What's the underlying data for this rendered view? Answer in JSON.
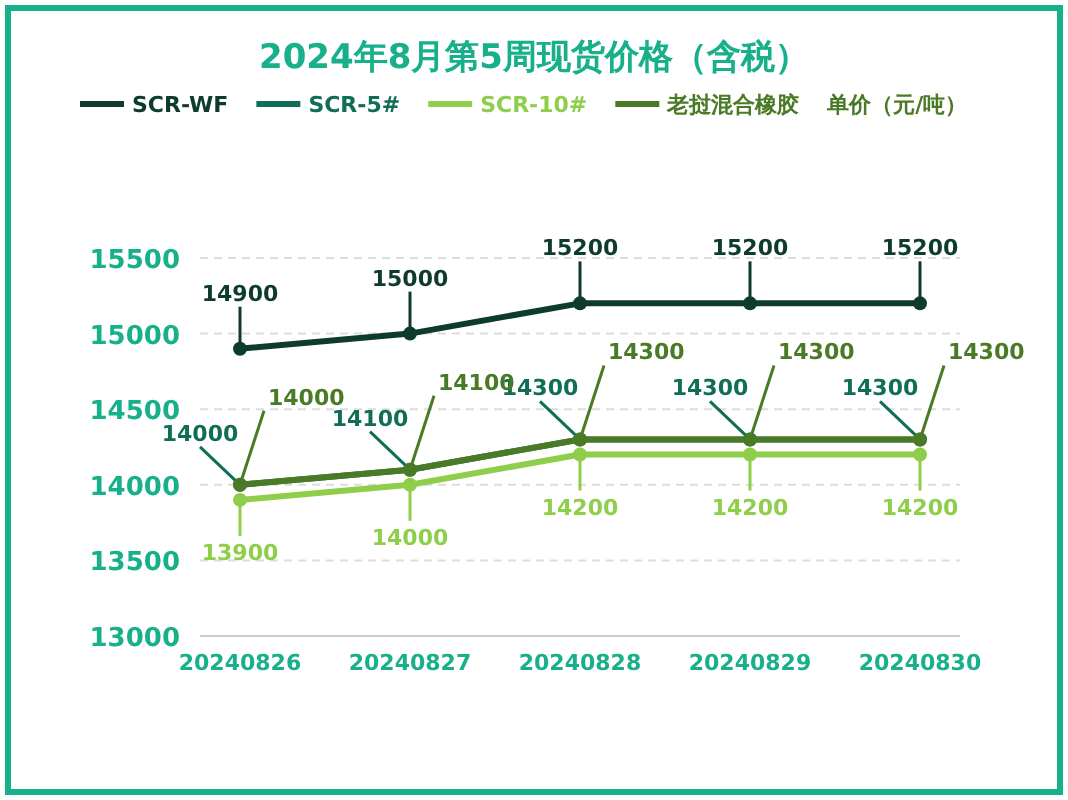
{
  "chart_data": {
    "type": "line",
    "title": "2024年8月第5周现货价格（含税）",
    "annotations": [
      "单价（元/吨）"
    ],
    "categories": [
      "20240826",
      "20240827",
      "20240828",
      "20240829",
      "20240830"
    ],
    "series": [
      {
        "name": "SCR-WF",
        "color": "#0d3b2e",
        "values": [
          14900,
          15000,
          15200,
          15200,
          15200
        ]
      },
      {
        "name": "SCR-5#",
        "color": "#0f6e55",
        "values": [
          14000,
          14100,
          14300,
          14300,
          14300
        ]
      },
      {
        "name": "SCR-10#",
        "color": "#8fce4a",
        "values": [
          13900,
          14000,
          14200,
          14200,
          14200
        ]
      },
      {
        "name": "老挝混合橡胶",
        "color": "#4a7a25",
        "values": [
          14000,
          14100,
          14300,
          14300,
          14300
        ]
      }
    ],
    "ylim": [
      13000,
      15500
    ],
    "yticks": [
      13000,
      13500,
      14000,
      14500,
      15000,
      15500
    ],
    "grid": "y",
    "legend": "top",
    "data_labels": true,
    "marker": "circle",
    "line_style": "solid"
  }
}
